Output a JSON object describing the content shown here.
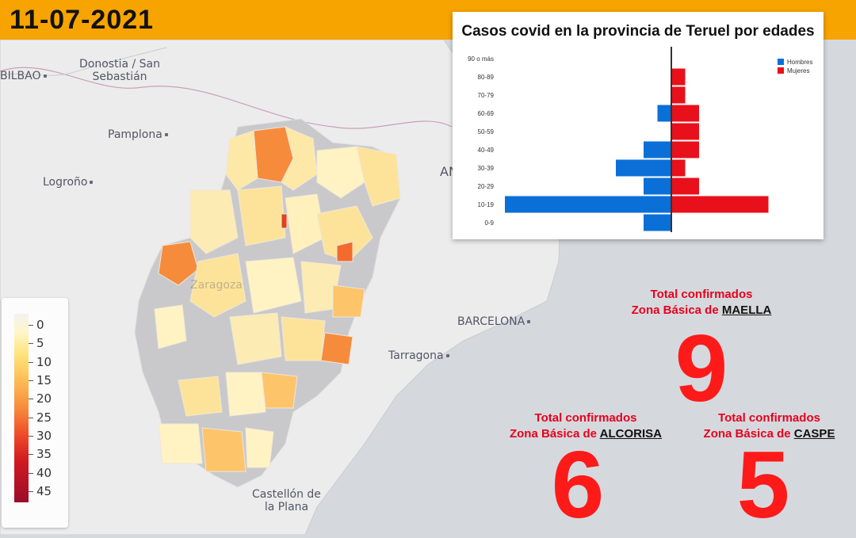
{
  "header": {
    "date": "11-07-2021"
  },
  "map": {
    "cities": [
      {
        "name": "Donostia / San\nSebastián",
        "key": "donostia"
      },
      {
        "name": "BILBAO",
        "key": "bilbao"
      },
      {
        "name": "Pamplona",
        "key": "pamplona"
      },
      {
        "name": "Logroño",
        "key": "logrono"
      },
      {
        "name": "Zaragoza",
        "key": "zaragoza"
      },
      {
        "name": "BARCELONA",
        "key": "barcelona"
      },
      {
        "name": "Tarragona",
        "key": "tarragona"
      },
      {
        "name": "Castellón de\nla Plana",
        "key": "castellon"
      },
      {
        "name": "AN",
        "key": "andorra"
      }
    ]
  },
  "legend": {
    "labels": [
      "0",
      "5",
      "10",
      "15",
      "20",
      "25",
      "30",
      "35",
      "40",
      "45"
    ]
  },
  "chart_data": {
    "type": "bar",
    "title": "Casos covid en la provincia de Teruel por edades",
    "categories": [
      "90 o más",
      "80-89",
      "70-79",
      "60-69",
      "50-59",
      "40-49",
      "30-39",
      "20-29",
      "10-19",
      "0-9"
    ],
    "series": [
      {
        "name": "Hombres",
        "color": "#0b6fd8",
        "values": [
          0,
          0,
          0,
          1,
          0,
          2,
          4,
          2,
          12,
          2
        ]
      },
      {
        "name": "Mujeres",
        "color": "#e8101a",
        "values": [
          0,
          1,
          1,
          2,
          2,
          2,
          1,
          2,
          7,
          0
        ]
      }
    ],
    "legend": "top-right",
    "orientation": "horizontal-pyramid"
  },
  "zones": [
    {
      "title": "Total confirmados",
      "prefix": "Zona Básica de",
      "name": "MAELLA",
      "count": "9"
    },
    {
      "title": "Total confirmados",
      "prefix": "Zona Básica de",
      "name": "ALCORISA",
      "count": "6"
    },
    {
      "title": "Total confirmados",
      "prefix": "Zona Básica de",
      "name": "CASPE",
      "count": "5"
    }
  ],
  "colors": {
    "banner": "#f7a300",
    "sea": "#d5d9de",
    "land": "#ececec",
    "accent_red": "#e8001c"
  }
}
